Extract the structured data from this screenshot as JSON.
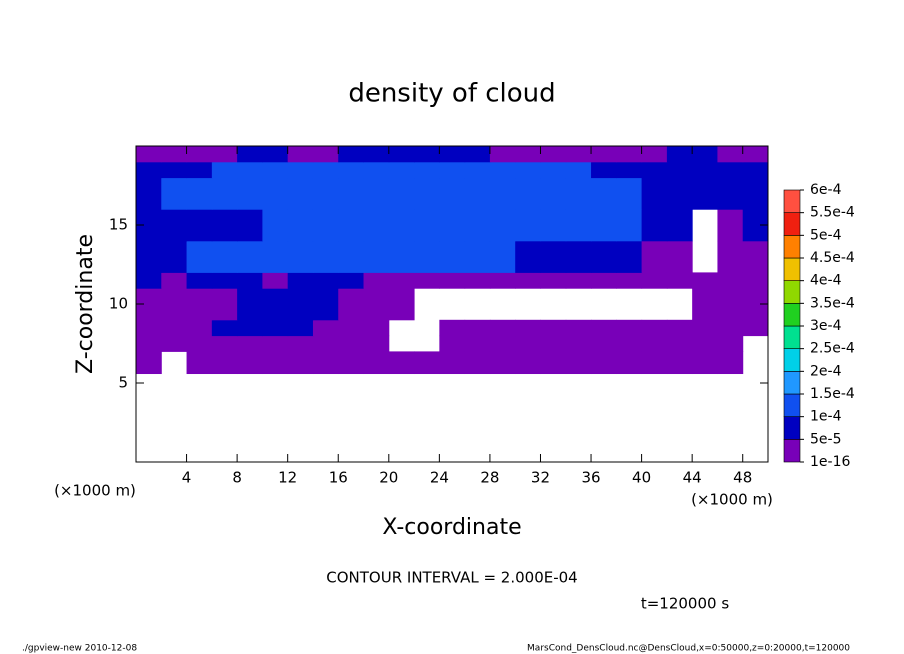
{
  "chart_data": {
    "type": "contour",
    "title": "density of cloud",
    "xlabel": "X-coordinate",
    "ylabel": "Z-coordinate",
    "xunit": "(×1000 m)",
    "yunit": "(×1000 m)",
    "xlim": [
      0,
      50
    ],
    "ylim": [
      0,
      20
    ],
    "xticks": [
      4,
      8,
      12,
      16,
      20,
      24,
      28,
      32,
      36,
      40,
      44,
      48
    ],
    "yticks": [
      5,
      10,
      15
    ],
    "xbins": [
      0,
      2,
      4,
      6,
      8,
      10,
      12,
      14,
      16,
      18,
      20,
      22,
      24,
      26,
      28,
      30,
      32,
      34,
      36,
      38,
      40,
      42,
      44,
      46,
      48,
      50
    ],
    "ybins": [
      0,
      5.6,
      7,
      8,
      9,
      11,
      12,
      14,
      16,
      18,
      19,
      20
    ],
    "values": [
      [
        null,
        null,
        null,
        null,
        null,
        null,
        null,
        null,
        null,
        null,
        null,
        null,
        null,
        null,
        null,
        null,
        null,
        null,
        null,
        null,
        null,
        null,
        null,
        null,
        null
      ],
      [
        2e-05,
        null,
        2e-05,
        2e-05,
        2e-05,
        2e-05,
        2e-05,
        2e-05,
        2e-05,
        2e-05,
        2e-05,
        2e-05,
        2e-05,
        2e-05,
        2e-05,
        2e-05,
        2e-05,
        2e-05,
        2e-05,
        2e-05,
        2e-05,
        2e-05,
        2e-05,
        2e-05,
        null
      ],
      [
        2e-05,
        2e-05,
        2e-05,
        2e-05,
        2e-05,
        2e-05,
        2e-05,
        2e-05,
        2e-05,
        2e-05,
        null,
        null,
        2e-05,
        2e-05,
        2e-05,
        2e-05,
        2e-05,
        2e-05,
        2e-05,
        2e-05,
        2e-05,
        2e-05,
        2e-05,
        2e-05,
        null
      ],
      [
        2e-05,
        2e-05,
        2e-05,
        7e-05,
        7e-05,
        7e-05,
        7e-05,
        2e-05,
        2e-05,
        2e-05,
        null,
        null,
        2e-05,
        2e-05,
        2e-05,
        2e-05,
        2e-05,
        2e-05,
        2e-05,
        2e-05,
        2e-05,
        2e-05,
        2e-05,
        2e-05,
        2e-05
      ],
      [
        2e-05,
        2e-05,
        2e-05,
        2e-05,
        7e-05,
        7e-05,
        7e-05,
        7e-05,
        2e-05,
        2e-05,
        2e-05,
        null,
        null,
        null,
        null,
        null,
        null,
        null,
        null,
        null,
        null,
        null,
        2e-05,
        2e-05,
        2e-05
      ],
      [
        7e-05,
        2e-05,
        7e-05,
        7e-05,
        7e-05,
        2e-05,
        7e-05,
        7e-05,
        7e-05,
        2e-05,
        2e-05,
        2e-05,
        2e-05,
        2e-05,
        2e-05,
        2e-05,
        2e-05,
        2e-05,
        2e-05,
        2e-05,
        2e-05,
        2e-05,
        2e-05,
        2e-05,
        2e-05
      ],
      [
        7e-05,
        7e-05,
        0.00012,
        0.00012,
        0.00012,
        0.00012,
        0.00012,
        0.00012,
        0.00012,
        0.00012,
        0.00012,
        0.00012,
        0.00012,
        0.00012,
        0.00012,
        7e-05,
        7e-05,
        7e-05,
        7e-05,
        7e-05,
        2e-05,
        2e-05,
        null,
        2e-05,
        2e-05
      ],
      [
        7e-05,
        7e-05,
        7e-05,
        7e-05,
        7e-05,
        0.00012,
        0.00012,
        0.00012,
        0.00012,
        0.00012,
        0.00012,
        0.00012,
        0.00012,
        0.00012,
        0.00012,
        0.00012,
        0.00012,
        0.00012,
        0.00012,
        0.00012,
        7e-05,
        7e-05,
        null,
        2e-05,
        7e-05
      ],
      [
        7e-05,
        0.00012,
        0.00012,
        0.00012,
        0.00012,
        0.00012,
        0.00012,
        0.00012,
        0.00012,
        0.00012,
        0.00012,
        0.00012,
        0.00012,
        0.00012,
        0.00012,
        0.00012,
        0.00012,
        0.00012,
        0.00012,
        0.00012,
        7e-05,
        7e-05,
        7e-05,
        7e-05,
        7e-05
      ],
      [
        7e-05,
        7e-05,
        7e-05,
        0.00012,
        0.00012,
        0.00012,
        0.00012,
        0.00012,
        0.00012,
        0.00012,
        0.00012,
        0.00012,
        0.00012,
        0.00012,
        0.00012,
        0.00012,
        0.00012,
        0.00012,
        7e-05,
        7e-05,
        7e-05,
        7e-05,
        7e-05,
        7e-05,
        7e-05
      ],
      [
        2e-05,
        2e-05,
        2e-05,
        2e-05,
        7e-05,
        7e-05,
        2e-05,
        2e-05,
        7e-05,
        7e-05,
        7e-05,
        7e-05,
        7e-05,
        7e-05,
        2e-05,
        2e-05,
        2e-05,
        2e-05,
        2e-05,
        2e-05,
        2e-05,
        7e-05,
        7e-05,
        2e-05,
        2e-05
      ]
    ],
    "levels": [
      {
        "value": 1e-16,
        "label": "1e-16"
      },
      {
        "value": 5e-05,
        "label": "5e-5"
      },
      {
        "value": 0.0001,
        "label": "1e-4"
      },
      {
        "value": 0.00015,
        "label": "1.5e-4"
      },
      {
        "value": 0.0002,
        "label": "2e-4"
      },
      {
        "value": 0.00025,
        "label": "2.5e-4"
      },
      {
        "value": 0.0003,
        "label": "3e-4"
      },
      {
        "value": 0.00035,
        "label": "3.5e-4"
      },
      {
        "value": 0.0004,
        "label": "4e-4"
      },
      {
        "value": 0.00045,
        "label": "4.5e-4"
      },
      {
        "value": 0.0005,
        "label": "5e-4"
      },
      {
        "value": 0.00055,
        "label": "5.5e-4"
      },
      {
        "value": 0.0006,
        "label": "6e-4"
      }
    ],
    "colors": [
      "#7800b8",
      "#0000c0",
      "#1050f0",
      "#2098ff",
      "#00d0e8",
      "#00e090",
      "#20d020",
      "#90d800",
      "#f0c000",
      "#ff8000",
      "#f02010",
      "#ff5040"
    ],
    "contour_interval": "CONTOUR INTERVAL = 2.000E-04",
    "time_label": "t=120000 s",
    "footer_left": "./gpview-new  2010-12-08",
    "footer_right": "MarsCond_DensCloud.nc@DensCloud,x=0:50000,z=0:20000,t=120000"
  }
}
